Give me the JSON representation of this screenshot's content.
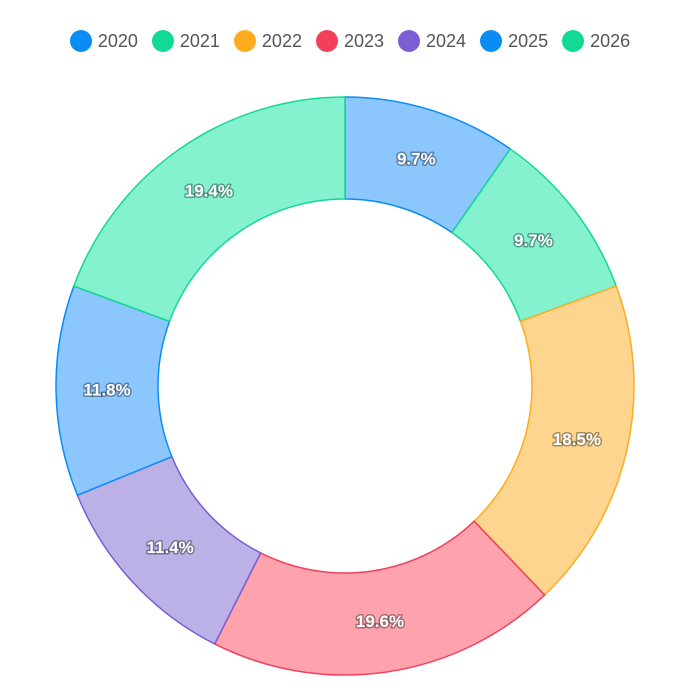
{
  "chart_data": {
    "type": "pie",
    "donut": true,
    "legend_position": "top",
    "categories": [
      "2020",
      "2021",
      "2022",
      "2023",
      "2024",
      "2025",
      "2026"
    ],
    "values": [
      9.7,
      9.7,
      18.5,
      19.6,
      11.4,
      11.8,
      19.4
    ],
    "labels": [
      "9.7%",
      "9.7%",
      "18.5%",
      "19.6%",
      "11.4%",
      "11.8%",
      "19.4%"
    ],
    "legend_colors": [
      "#0a8cf5",
      "#12d993",
      "#ffab1e",
      "#f3405a",
      "#7a5ed2",
      "#0a8cf5",
      "#12d993"
    ],
    "fill_colors": [
      "#8bc6fd",
      "#84f1cf",
      "#fed58f",
      "#fea3ae",
      "#bbb1e7",
      "#8bc6fd",
      "#84f1cf"
    ],
    "border_colors": [
      "#0a8cf5",
      "#12d993",
      "#ffab1e",
      "#f3405a",
      "#7a5ed2",
      "#0a8cf5",
      "#12d993"
    ]
  }
}
